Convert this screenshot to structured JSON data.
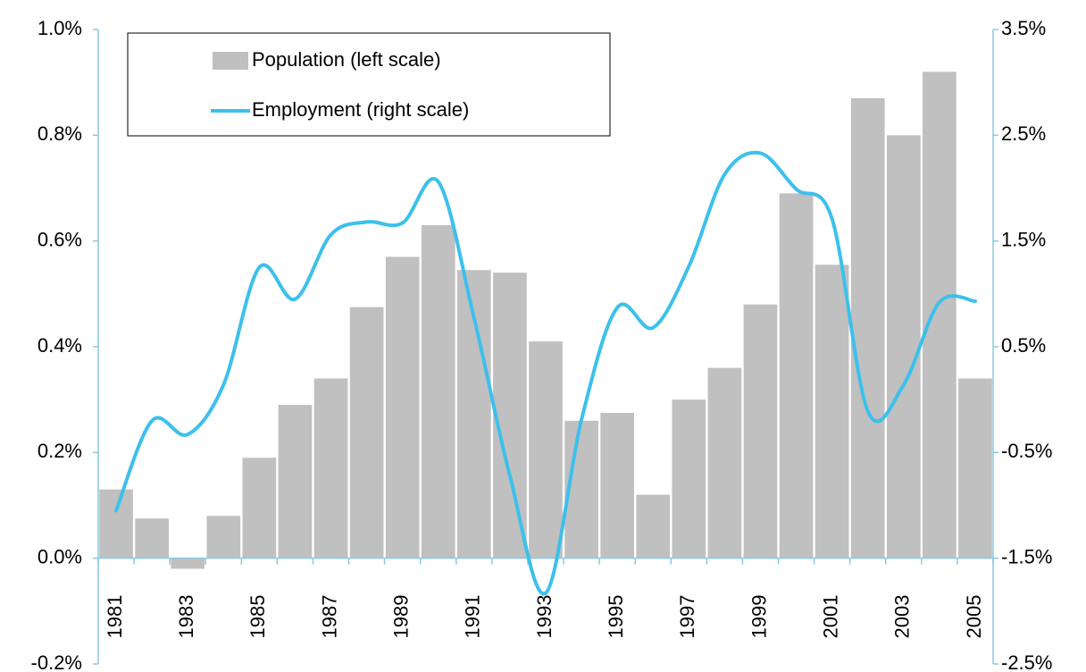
{
  "chart_data": {
    "type": "combo",
    "categories": [
      "1981",
      null,
      "1983",
      null,
      "1985",
      null,
      "1987",
      null,
      "1989",
      null,
      "1991",
      null,
      "1993",
      null,
      "1995",
      null,
      "1997",
      null,
      "1999",
      null,
      "2001",
      null,
      "2003",
      null,
      "2005"
    ],
    "series": [
      {
        "name": "Population (left scale)",
        "type": "bar",
        "color": "#c0c0c0",
        "values": [
          0.13,
          0.075,
          -0.02,
          0.08,
          0.19,
          0.29,
          0.34,
          0.475,
          0.57,
          0.63,
          0.545,
          0.54,
          0.41,
          0.26,
          0.275,
          0.12,
          0.3,
          0.36,
          0.48,
          0.69,
          0.555,
          0.87,
          0.8,
          0.92,
          0.34
        ]
      },
      {
        "name": "Employment (right scale)",
        "type": "line",
        "color": "#3cc0ec",
        "axis": "y2",
        "values": [
          -1.05,
          -0.2,
          -0.33,
          0.14,
          1.25,
          0.95,
          1.56,
          1.68,
          1.67,
          2.06,
          0.77,
          -0.72,
          -1.83,
          -0.19,
          0.87,
          0.68,
          1.26,
          2.13,
          2.33,
          1.99,
          1.71,
          -0.11,
          0.14,
          0.92,
          0.93
        ]
      }
    ],
    "ylim": [
      -0.2,
      1.0
    ],
    "yticks": [
      {
        "value": -0.2,
        "label": "-0.2%"
      },
      {
        "value": 0.0,
        "label": "0.0%"
      },
      {
        "value": 0.2,
        "label": "0.2%"
      },
      {
        "value": 0.4,
        "label": "0.4%"
      },
      {
        "value": 0.6,
        "label": "0.6%"
      },
      {
        "value": 0.8,
        "label": "0.8%"
      },
      {
        "value": 1.0,
        "label": "1.0%"
      }
    ],
    "y2lim": [
      -2.5,
      3.5
    ],
    "y2ticks": [
      {
        "value": -2.5,
        "label": "-2.5%"
      },
      {
        "value": -1.5,
        "label": "-1.5%"
      },
      {
        "value": -0.5,
        "label": "-0.5%"
      },
      {
        "value": 0.5,
        "label": "0.5%"
      },
      {
        "value": 1.5,
        "label": "1.5%"
      },
      {
        "value": 2.5,
        "label": "2.5%"
      },
      {
        "value": 3.5,
        "label": "3.5%"
      }
    ],
    "legend": "upper-left"
  }
}
